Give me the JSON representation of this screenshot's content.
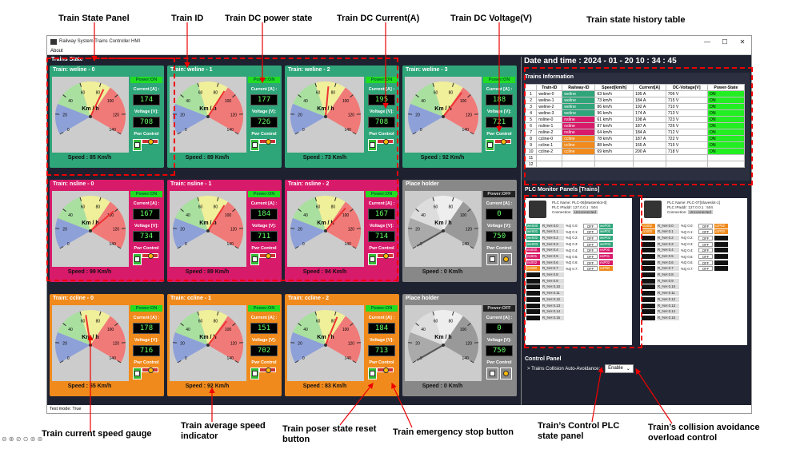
{
  "annotations": {
    "train_state_panel": "Train State Panel",
    "train_id": "Train ID",
    "dc_power_state": "Train DC power state",
    "dc_current": "Train DC Current(A)",
    "dc_voltage": "Train DC Voltage(V)",
    "history_table": "Train state history table",
    "current_speed_gauge": "Train current speed gauge",
    "avg_speed": "Train average speed indicator",
    "power_reset": "Train poser state reset button",
    "emergency_stop": "Train emergency stop button",
    "control_plc": "Train’s Control PLC state panel",
    "collision_avoidance": "Train’s collision avoidance overload control"
  },
  "window": {
    "title": "Railway System Trains Controller HMI",
    "menu": "About",
    "status": "Test mode: True"
  },
  "trains_state": {
    "title": "Trains State",
    "gauge_unit": "Km / h",
    "power_on": "Power:ON",
    "power_off": "Power:OFF",
    "current_label": "Current [A] :",
    "voltage_label": "Voltage [V]:",
    "pwr_control": "Pwr Control",
    "cards": [
      {
        "name": "Train: weline - 0",
        "speed": "Speed : 85 Km/h",
        "current": "174",
        "voltage": "708",
        "power": "on",
        "color": "#2fa57a",
        "speed_value": 85
      },
      {
        "name": "Train: weline - 1",
        "speed": "Speed : 89 Km/h",
        "current": "177",
        "voltage": "726",
        "power": "on",
        "color": "#2fa57a",
        "speed_value": 89
      },
      {
        "name": "Train: weline - 2",
        "speed": "Speed : 73 Km/h",
        "current": "195",
        "voltage": "708",
        "power": "on",
        "color": "#2fa57a",
        "speed_value": 73
      },
      {
        "name": "Train: weline - 3",
        "speed": "Speed : 92 Km/h",
        "current": "188",
        "voltage": "721",
        "power": "on",
        "color": "#2fa57a",
        "speed_value": 92
      },
      {
        "name": "Train: nsline - 0",
        "speed": "Speed : 99 Km/h",
        "current": "167",
        "voltage": "734",
        "power": "on",
        "color": "#d81a6a",
        "speed_value": 99
      },
      {
        "name": "Train: nsline - 1",
        "speed": "Speed : 89 Km/h",
        "current": "184",
        "voltage": "711",
        "power": "on",
        "color": "#d81a6a",
        "speed_value": 89
      },
      {
        "name": "Train: nsline - 2",
        "speed": "Speed : 94 Km/h",
        "current": "167",
        "voltage": "714",
        "power": "on",
        "color": "#d81a6a",
        "speed_value": 94
      },
      {
        "name": "Place holder",
        "speed": "Speed : 0 Km/h",
        "current": "0",
        "voltage": "750",
        "power": "off",
        "color": "#888888",
        "speed_value": 0
      },
      {
        "name": "Train: ccline - 0",
        "speed": "Speed : 65 Km/h",
        "current": "178",
        "voltage": "716",
        "power": "on",
        "color": "#f08a1c",
        "speed_value": 65
      },
      {
        "name": "Train: ccline - 1",
        "speed": "Speed : 92 Km/h",
        "current": "151",
        "voltage": "702",
        "power": "on",
        "color": "#f08a1c",
        "speed_value": 92
      },
      {
        "name": "Train: ccline - 2",
        "speed": "Speed : 83 Km/h",
        "current": "184",
        "voltage": "713",
        "power": "on",
        "color": "#f08a1c",
        "speed_value": 83
      },
      {
        "name": "Place holder",
        "speed": "Speed : 0 Km/h",
        "current": "0",
        "voltage": "750",
        "power": "off",
        "color": "#888888",
        "speed_value": 0
      }
    ]
  },
  "datetime": "Date and time :  2024 - 01 - 20 10 : 34 : 45",
  "trains_info": {
    "title": "Trains Information",
    "headers": [
      "",
      "Train-ID",
      "Railway-ID",
      "Speed[km/h]",
      "Current[A]",
      "DC-Voltage[V]",
      "Power-State"
    ],
    "rows": [
      [
        "1",
        "weline-0",
        "weline",
        "63 km/h",
        "195 A",
        "706 V",
        "ON"
      ],
      [
        "2",
        "weline-1",
        "weline",
        "73 km/h",
        "184 A",
        "715 V",
        "ON"
      ],
      [
        "3",
        "weline-2",
        "weline",
        "86 km/h",
        "192 A",
        "710 V",
        "ON"
      ],
      [
        "4",
        "weline-3",
        "weline",
        "96 km/h",
        "174 A",
        "713 V",
        "ON"
      ],
      [
        "5",
        "nsline-0",
        "nsline",
        "61 km/h",
        "198 A",
        "723 V",
        "ON"
      ],
      [
        "6",
        "nsline-1",
        "nsline",
        "87 km/h",
        "187 A",
        "726 V",
        "ON"
      ],
      [
        "7",
        "nsline-2",
        "nsline",
        "64 km/h",
        "184 A",
        "712 V",
        "ON"
      ],
      [
        "8",
        "ccline-0",
        "ccline",
        "78 km/h",
        "187 A",
        "722 V",
        "ON"
      ],
      [
        "9",
        "ccline-1",
        "ccline",
        "88 km/h",
        "165 A",
        "715 V",
        "ON"
      ],
      [
        "10",
        "ccline-2",
        "ccline",
        "69 km/h",
        "200 A",
        "718 V",
        "ON"
      ],
      [
        "11",
        "",
        "",
        "",
        "",
        "",
        ""
      ],
      [
        "12",
        "",
        "",
        "",
        "",
        "",
        ""
      ]
    ]
  },
  "plc_panels": {
    "title": "PLC Monitor Panels [Trains]",
    "panels": [
      {
        "name": "PLC Name:   PLC-06[Masterslot-0]",
        "ip": "PLC IPaddr:  127.0.0.1 : 504",
        "conn_label": "Connection:",
        "conn_state": "Unconnected",
        "left_tags": [
          "weS00",
          "weS01",
          "weS02",
          "weS03",
          "nsS00",
          "nsS01",
          "nsS02",
          "ccS00",
          "",
          "",
          "",
          "",
          "",
          "",
          "",
          ""
        ],
        "left_colors": [
          "#2fa57a",
          "#2fa57a",
          "#2fa57a",
          "#2fa57a",
          "#d81a6a",
          "#d81a6a",
          "#d81a6a",
          "#f08a1c",
          "#111",
          "#111",
          "#111",
          "#111",
          "#111",
          "#111",
          "#111",
          "#111"
        ],
        "regs": [
          "R_%H 0.0",
          "R_%H 0.1",
          "R_%H 0.2",
          "R_%H 0.3",
          "R_%H 0.4",
          "R_%H 0.5",
          "R_%H 0.6",
          "R_%H 0.7",
          "R_%H 0.8",
          "R_%H 0.9",
          "R_%H 0.10",
          "R_%H 0.11",
          "R_%H 0.12",
          "R_%H 0.13",
          "R_%H 0.14",
          "R_%H 0.15"
        ],
        "qs": [
          "%Q 0.0:",
          "%Q 0.1:",
          "%Q 0.2:",
          "%Q 0.3:",
          "%Q 0.4:",
          "%Q 0.5:",
          "%Q 0.6:",
          "%Q 0.7:"
        ],
        "qvals": [
          "OFF",
          "OFF",
          "OFF",
          "OFF",
          "OFF",
          "OFF",
          "OFF",
          "OFF"
        ],
        "right_tags": [
          "weP00",
          "weP01",
          "weP02",
          "weP03",
          "nsP00",
          "nsP01",
          "nsP02",
          "ccP00"
        ],
        "right_colors": [
          "#2fa57a",
          "#2fa57a",
          "#2fa57a",
          "#2fa57a",
          "#d81a6a",
          "#d81a6a",
          "#d81a6a",
          "#f08a1c"
        ]
      },
      {
        "name": "PLC Name:   PLC-07[Slaveslot-1]",
        "ip": "PLC IPaddr:  127.0.0.1 : 504",
        "conn_label": "Connection:",
        "conn_state": "Unconnected",
        "left_tags": [
          "ccS02",
          "ccS03",
          "",
          "",
          "",
          "",
          "",
          "",
          "",
          "",
          "",
          "",
          "",
          "",
          "",
          ""
        ],
        "left_colors": [
          "#f08a1c",
          "#f08a1c",
          "#111",
          "#111",
          "#111",
          "#111",
          "#111",
          "#111",
          "#111",
          "#111",
          "#111",
          "#111",
          "#111",
          "#111",
          "#111",
          "#111"
        ],
        "regs": [
          "R_%H 0.0",
          "R_%H 0.1",
          "R_%H 0.2",
          "R_%H 0.3",
          "R_%H 0.4",
          "R_%H 0.5",
          "R_%H 0.6",
          "R_%H 0.7",
          "R_%H 0.8",
          "R_%H 0.9",
          "R_%H 0.10",
          "R_%H 0.11",
          "R_%H 0.12",
          "R_%H 0.13",
          "R_%H 0.14",
          "R_%H 0.15"
        ],
        "qs": [
          "%Q 0.0:",
          "%Q 0.1:",
          "%Q 0.2:",
          "%Q 0.3:",
          "%Q 0.4:",
          "%Q 0.5:",
          "%Q 0.6:",
          "%Q 0.7:"
        ],
        "qvals": [
          "OFF",
          "OFF",
          "OFF",
          "OFF",
          "OFF",
          "OFF",
          "OFF",
          "OFF"
        ],
        "right_tags": [
          "ccP02",
          "ccP03",
          "",
          "",
          "",
          "",
          "",
          ""
        ],
        "right_colors": [
          "#f08a1c",
          "#f08a1c",
          "#111",
          "#111",
          "#111",
          "#111",
          "#111",
          "#111"
        ]
      }
    ]
  },
  "control_panel": {
    "title": "Control Panel",
    "label": "> Trains Collision Auto-Avoidance:",
    "value": "Enable"
  },
  "colors": {
    "we": "#2fa57a",
    "ns": "#d81a6a",
    "cc": "#f08a1c",
    "annotation_red": "#e00000"
  }
}
